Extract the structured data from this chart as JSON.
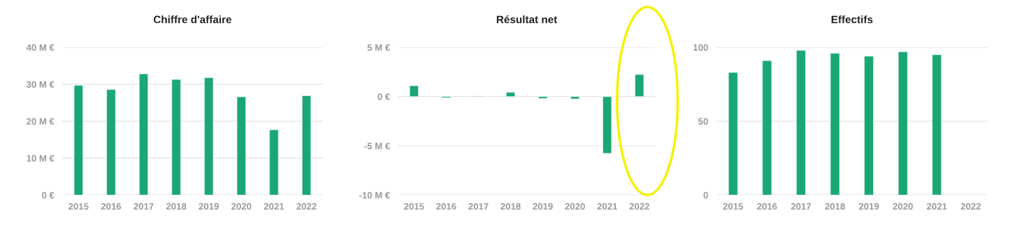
{
  "chart_data": [
    {
      "type": "bar",
      "title": "Chiffre d'affaire",
      "categories": [
        "2015",
        "2016",
        "2017",
        "2018",
        "2019",
        "2020",
        "2021",
        "2022"
      ],
      "series": [
        {
          "color": "#1aa774",
          "values": [
            29.7,
            28.6,
            32.8,
            31.3,
            31.8,
            26.6,
            17.7,
            26.9
          ]
        }
      ],
      "ylim": [
        0,
        40
      ],
      "yticks": [
        {
          "value": 0,
          "label": "0 €"
        },
        {
          "value": 10,
          "label": "10 M €"
        },
        {
          "value": 20,
          "label": "20 M €"
        },
        {
          "value": 30,
          "label": "30 M €"
        },
        {
          "value": 40,
          "label": "40 M €"
        }
      ],
      "grid": "y",
      "legend": false
    },
    {
      "type": "bar",
      "title": "Résultat net",
      "categories": [
        "2015",
        "2016",
        "2017",
        "2018",
        "2019",
        "2020",
        "2021",
        "2022"
      ],
      "series": [
        {
          "color": "#1aa774",
          "values": [
            1.1,
            -0.12,
            0.05,
            0.43,
            -0.19,
            -0.24,
            -5.76,
            2.24
          ]
        }
      ],
      "ylim": [
        -10,
        5
      ],
      "yticks": [
        {
          "value": -10,
          "label": "-10 M €"
        },
        {
          "value": -5,
          "label": "-5 M €"
        },
        {
          "value": 0,
          "label": "0 €"
        },
        {
          "value": 5,
          "label": "5 M €"
        }
      ],
      "grid": "y",
      "legend": false
    },
    {
      "type": "bar",
      "title": "Effectifs",
      "categories": [
        "2015",
        "2016",
        "2017",
        "2018",
        "2019",
        "2020",
        "2021",
        "2022"
      ],
      "series": [
        {
          "color": "#1aa774",
          "values": [
            83,
            91,
            98,
            96,
            94,
            97,
            95,
            null
          ]
        }
      ],
      "ylim": [
        0,
        100
      ],
      "yticks": [
        0,
        50,
        100
      ],
      "grid": "y",
      "legend": false
    }
  ]
}
